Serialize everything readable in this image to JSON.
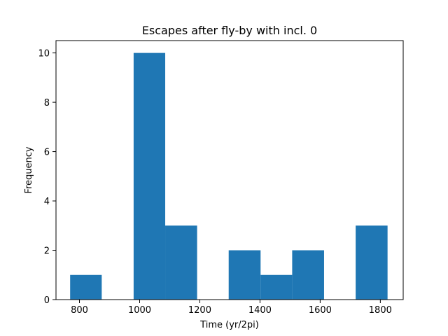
{
  "chart_data": {
    "type": "bar",
    "title": "Escapes after fly-by with incl. 0",
    "xlabel": "Time (yr/2pi)",
    "ylabel": "Frequency",
    "xlim": [
      722,
      1876
    ],
    "ylim": [
      0,
      10.5
    ],
    "xticks": [
      800,
      1000,
      1200,
      1400,
      1600,
      1800
    ],
    "yticks": [
      0,
      2,
      4,
      6,
      8,
      10
    ],
    "bar_color": "#1f77b4",
    "grid": false,
    "bins": [
      {
        "x0": 769,
        "x1": 874,
        "value": 1
      },
      {
        "x0": 874,
        "x1": 980,
        "value": 0
      },
      {
        "x0": 980,
        "x1": 1085,
        "value": 10
      },
      {
        "x0": 1085,
        "x1": 1191,
        "value": 3
      },
      {
        "x0": 1191,
        "x1": 1296,
        "value": 0
      },
      {
        "x0": 1296,
        "x1": 1402,
        "value": 2
      },
      {
        "x0": 1402,
        "x1": 1507,
        "value": 1
      },
      {
        "x0": 1507,
        "x1": 1613,
        "value": 2
      },
      {
        "x0": 1613,
        "x1": 1718,
        "value": 0
      },
      {
        "x0": 1718,
        "x1": 1824,
        "value": 3
      }
    ]
  }
}
